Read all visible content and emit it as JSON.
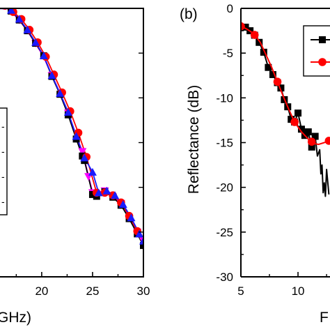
{
  "chart_data": [
    {
      "type": "line",
      "panel": "left",
      "title": "",
      "xlabel_fragment": "GHz)",
      "ylabel": "",
      "xlim": [
        15.9,
        30
      ],
      "ylim": [
        -30,
        0
      ],
      "x_ticks": [
        "20",
        "25",
        "30"
      ],
      "grid": false,
      "legend_fragment_marks": [
        "-",
        "-",
        "-",
        "-"
      ],
      "series": [
        {
          "color": "#000000",
          "marker": "square",
          "x": [
            16.2,
            17.0,
            17.8,
            18.6,
            19.4,
            20.2,
            21.0,
            21.8,
            22.6,
            23.4,
            24.0,
            24.2,
            25.0,
            25.4,
            26.2,
            27.0,
            27.8,
            28.6,
            29.4,
            30.0
          ],
          "y": [
            0.3,
            -0.3,
            -1.3,
            -2.5,
            -3.9,
            -5.3,
            -7.6,
            -9.6,
            -11.9,
            -14.6,
            -16.5,
            -17.0,
            -20.8,
            -21.0,
            -20.5,
            -21.1,
            -22.0,
            -23.5,
            -25.2,
            -26.5
          ]
        },
        {
          "color": "#ff0000",
          "marker": "circle",
          "x": [
            16.4,
            17.2,
            18.0,
            18.8,
            19.6,
            20.4,
            21.2,
            22.0,
            22.8,
            23.6,
            24.4,
            25.4,
            26.2,
            27.0,
            27.8,
            28.6,
            29.4
          ],
          "y": [
            0.3,
            -0.4,
            -1.2,
            -2.4,
            -3.8,
            -5.4,
            -7.4,
            -9.4,
            -11.5,
            -13.9,
            -16.6,
            -20.6,
            -20.6,
            -20.9,
            -21.7,
            -23.2,
            -24.9
          ]
        },
        {
          "color": "#1a1aff",
          "marker": "triangle-up",
          "x": [
            16.2,
            17.0,
            17.8,
            18.6,
            19.4,
            20.2,
            21.0,
            21.8,
            22.6,
            23.4,
            24.2,
            25.0,
            25.6,
            26.4,
            27.2,
            28.0,
            28.8,
            29.6,
            30.0
          ],
          "y": [
            0.3,
            -0.2,
            -1.2,
            -2.4,
            -3.8,
            -5.3,
            -7.5,
            -9.5,
            -11.6,
            -14.3,
            -16.7,
            -18.3,
            -20.6,
            -20.4,
            -20.9,
            -21.9,
            -23.4,
            -25.2,
            -26.0
          ]
        },
        {
          "color": "#ff00ff",
          "marker": "triangle-down",
          "x": [
            16.2,
            17.0,
            17.8,
            18.6,
            19.4,
            20.2,
            21.0,
            21.8,
            22.6,
            23.4,
            24.0,
            24.3,
            24.6,
            24.8,
            25.0,
            25.3,
            26.2,
            27.0,
            27.8,
            28.6,
            29.4,
            30.0
          ],
          "y": [
            0.3,
            -0.3,
            -1.3,
            -2.5,
            -3.9,
            -5.4,
            -7.5,
            -9.5,
            -11.7,
            -14.3,
            -16.0,
            -17.4,
            -18.8,
            -19.7,
            -20.6,
            -20.6,
            -20.4,
            -20.9,
            -21.8,
            -23.3,
            -25.0,
            -26.0
          ]
        }
      ]
    },
    {
      "type": "line",
      "panel": "right",
      "panel_label": "(b)",
      "title": "",
      "xlabel_fragment": "F",
      "ylabel": "Reflectance (dB)",
      "xlim": [
        5,
        12.8
      ],
      "ylim": [
        -30,
        0
      ],
      "x_ticks": [
        "5",
        "10"
      ],
      "y_ticks": [
        "0",
        "-5",
        "-10",
        "-15",
        "-20",
        "-25",
        "-30"
      ],
      "grid": false,
      "series": [
        {
          "color": "#000000",
          "marker": "square",
          "x": [
            5.0,
            5.4,
            5.8,
            6.2,
            6.6,
            7.0,
            7.4,
            7.8,
            8.2,
            8.5,
            8.8,
            9.1,
            9.4,
            9.7,
            10.0,
            10.3,
            10.6,
            10.9,
            11.2,
            11.5,
            11.7,
            11.9,
            12.0,
            12.1,
            12.2,
            12.3,
            12.4,
            12.5,
            12.7
          ],
          "y": [
            -2.0,
            -2.1,
            -2.5,
            -3.0,
            -3.8,
            -4.9,
            -6.6,
            -7.4,
            -8.3,
            -8.9,
            -10.2,
            -11.0,
            -12.4,
            -12.7,
            -11.7,
            -13.5,
            -14.2,
            -13.8,
            -15.5,
            -14.3,
            -16.5,
            -15.8,
            -18.5,
            -17.5,
            -20.6,
            -19.5,
            -21.0,
            -18.0,
            -20.8
          ]
        },
        {
          "color": "#ff0000",
          "marker": "circle",
          "x": [
            5.0,
            5.5,
            6.1,
            6.7,
            7.2,
            7.7,
            8.2,
            8.7,
            9.2,
            9.7,
            10.3,
            10.9,
            11.4,
            11.8,
            12.3,
            12.7
          ],
          "y": [
            -2.0,
            -2.3,
            -2.8,
            -3.8,
            -5.2,
            -6.6,
            -8.2,
            -9.8,
            -11.3,
            -12.7,
            -13.8,
            -14.6,
            -15.1,
            -15.2,
            -15.0,
            -14.8
          ],
          "marker_at_x": [
            5.0,
            6.2,
            8.2,
            9.7,
            11.2,
            12.7
          ]
        }
      ]
    }
  ]
}
